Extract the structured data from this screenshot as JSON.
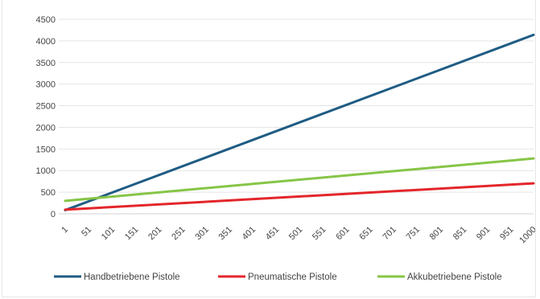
{
  "chart_data": {
    "type": "line",
    "title": "",
    "xlabel": "",
    "ylabel": "",
    "x": [
      1,
      1000
    ],
    "x_tick_labels": [
      "1",
      "51",
      "101",
      "151",
      "201",
      "251",
      "301",
      "351",
      "401",
      "451",
      "501",
      "551",
      "601",
      "651",
      "701",
      "751",
      "801",
      "851",
      "901",
      "951",
      "1000"
    ],
    "ylim": [
      0,
      4500
    ],
    "y_ticks": [
      0,
      500,
      1000,
      1500,
      2000,
      2500,
      3000,
      3500,
      4000,
      4500
    ],
    "grid": true,
    "legend_position": "bottom",
    "series": [
      {
        "name": "Handbetriebene Pistole",
        "color": "#1f5c84",
        "x": [
          1,
          1000
        ],
        "y": [
          85,
          4140
        ]
      },
      {
        "name": "Pneumatische Pistole",
        "color": "#e3262a",
        "x": [
          1,
          1000
        ],
        "y": [
          95,
          705
        ]
      },
      {
        "name": "Akkubetriebene Pistole",
        "color": "#86c546",
        "x": [
          1,
          1000
        ],
        "y": [
          300,
          1280
        ]
      }
    ]
  }
}
